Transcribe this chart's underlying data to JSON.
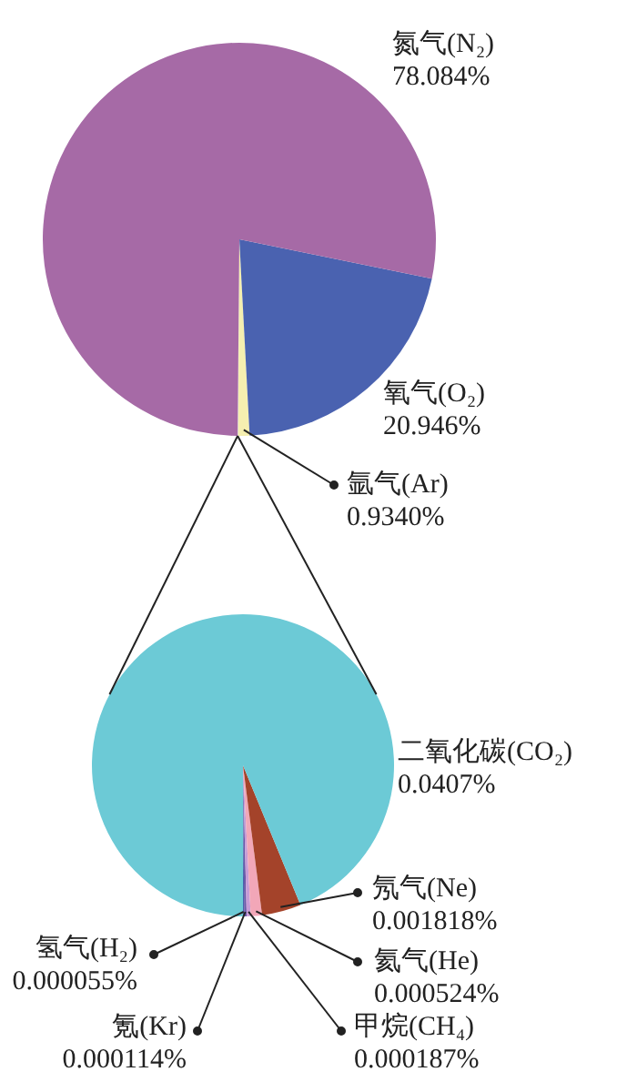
{
  "chart_data": [
    {
      "type": "pie",
      "categories": [
        null,
        "氩气(Ar)",
        "氧气(O₂)",
        "氮气(N₂)"
      ],
      "values": [
        0.043,
        0.934,
        20.946,
        78.084
      ],
      "value_labels": [
        null,
        "0.9340%",
        "20.946%",
        "78.084%"
      ],
      "colors": [
        "#d9d9d9",
        "#f5efb0",
        "#4a62b0",
        "#a66aa6"
      ]
    },
    {
      "type": "pie",
      "categories": [
        "氢气(H₂)",
        "氪(Kr)",
        "甲烷(CH₄)",
        "氦气(He)",
        "氖气(Ne)",
        "二氧化碳(CO₂)"
      ],
      "values": [
        5.5e-05,
        0.000114,
        0.000187,
        0.000524,
        0.001818,
        0.0407
      ],
      "value_labels": [
        "0.000055%",
        "0.000114%",
        "0.000187%",
        "0.000524%",
        "0.001818%",
        "0.0407%"
      ],
      "colors": [
        "#4a62b0",
        "#6a5aa8",
        "#c79bd6",
        "#f2a7b8",
        "#a4432a",
        "#6ccad6"
      ]
    }
  ]
}
